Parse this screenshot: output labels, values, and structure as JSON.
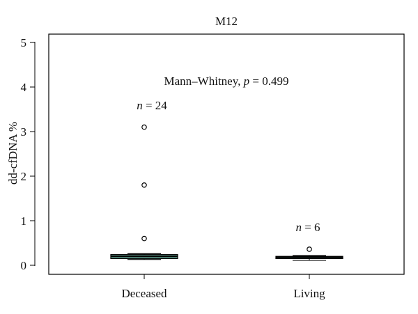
{
  "chart_data": {
    "type": "box",
    "title": "M12",
    "xlabel": "",
    "ylabel": "dd-cfDNA %",
    "ylim": [
      0,
      5
    ],
    "yticks": [
      0,
      1,
      2,
      3,
      4,
      5
    ],
    "grid": false,
    "categories": [
      "Deceased",
      "Living"
    ],
    "groups": [
      {
        "name": "Deceased",
        "n_label": "n = 24",
        "n_value": "24",
        "whisker_low": 0.13,
        "q1": 0.15,
        "median": 0.2,
        "q3": 0.24,
        "whisker_high": 0.26,
        "outliers": [
          0.6,
          1.8,
          3.1
        ],
        "fill": "#6db39f"
      },
      {
        "name": "Living",
        "n_label": "n = 6",
        "n_value": "6",
        "whisker_low": 0.11,
        "q1": 0.15,
        "median": 0.18,
        "q3": 0.2,
        "whisker_high": 0.22,
        "outliers": [
          0.36
        ],
        "fill": "#5aa08c"
      }
    ],
    "annotation": {
      "test_label": "Mann–Whitney, ",
      "p_symbol": "p",
      "p_text": " = 0.499"
    }
  }
}
